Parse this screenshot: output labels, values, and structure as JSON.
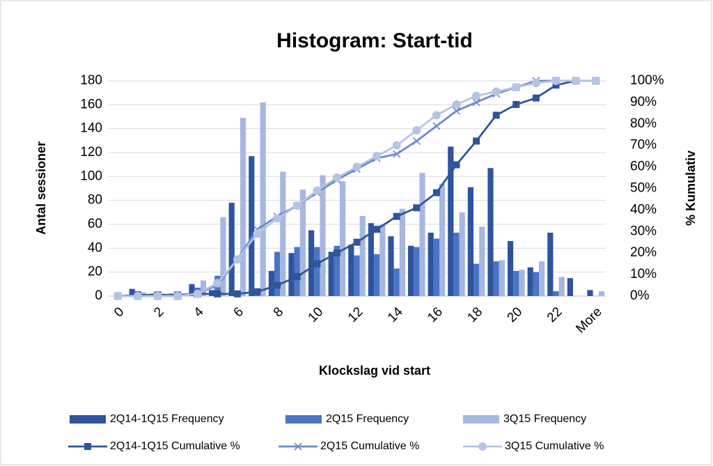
{
  "chart_data": {
    "type": "bar-line",
    "title": "Histogram: Start-tid",
    "x_label": "Klockslag vid start",
    "y_label": "Antal sessioner",
    "y2_label": "% Kumulativ",
    "categories": [
      "0",
      null,
      "2",
      null,
      "4",
      null,
      "6",
      null,
      "8",
      null,
      "10",
      null,
      "12",
      null,
      "14",
      null,
      "16",
      null,
      "18",
      null,
      "20",
      null,
      "22",
      null,
      "More"
    ],
    "ylim": [
      0,
      180
    ],
    "yticks": [
      0,
      20,
      40,
      60,
      80,
      100,
      120,
      140,
      160,
      180
    ],
    "y2lim": [
      0,
      100
    ],
    "y2ticks": [
      {
        "value": 0,
        "label": "0%"
      },
      {
        "value": 10,
        "label": "10%"
      },
      {
        "value": 20,
        "label": "20%"
      },
      {
        "value": 30,
        "label": "30%"
      },
      {
        "value": 40,
        "label": "40%"
      },
      {
        "value": 50,
        "label": "50%"
      },
      {
        "value": 60,
        "label": "60%"
      },
      {
        "value": 70,
        "label": "70%"
      },
      {
        "value": 80,
        "label": "80%"
      },
      {
        "value": 90,
        "label": "90%"
      },
      {
        "value": 100,
        "label": "100%"
      }
    ],
    "grid": true,
    "legend": "bottom",
    "series": [
      {
        "name": "2Q14-1Q15 Frequency",
        "kind": "bar",
        "color": "#2e54a0",
        "values": [
          0,
          6,
          2,
          2,
          10,
          5,
          78,
          117,
          21,
          36,
          55,
          37,
          43,
          61,
          50,
          42,
          53,
          125,
          91,
          107,
          46,
          24,
          53,
          15,
          5
        ]
      },
      {
        "name": "2Q15 Frequency",
        "kind": "bar",
        "color": "#4a74c4",
        "values": [
          0,
          4,
          2,
          2,
          7,
          17,
          3,
          5,
          37,
          41,
          41,
          42,
          34,
          35,
          23,
          41,
          48,
          53,
          27,
          29,
          21,
          20,
          4,
          0,
          0
        ]
      },
      {
        "name": "3Q15 Frequency",
        "kind": "bar",
        "color": "#a6b7e0",
        "values": [
          0,
          3,
          2,
          2,
          13,
          66,
          149,
          162,
          104,
          89,
          101,
          96,
          67,
          60,
          73,
          103,
          94,
          70,
          58,
          30,
          22,
          29,
          16,
          0,
          4
        ]
      },
      {
        "name": "2Q14-1Q15 Cumulative %",
        "kind": "line",
        "axis": "y2",
        "marker": "square",
        "color": "#2f5597",
        "values": [
          0,
          0.5,
          0.5,
          0.5,
          1,
          1,
          1,
          2,
          5,
          9,
          15,
          20,
          25,
          31,
          37,
          41,
          48,
          61,
          72,
          84,
          89,
          92,
          98,
          100,
          100
        ]
      },
      {
        "name": "2Q15 Cumulative %",
        "kind": "line",
        "axis": "y2",
        "marker": "x",
        "color": "#6b89cc",
        "values": [
          0,
          0,
          0,
          0,
          1,
          5,
          17,
          31,
          37,
          42,
          48,
          54,
          59,
          64,
          66,
          72,
          79,
          86,
          90,
          94,
          97,
          100,
          100,
          100,
          100
        ]
      },
      {
        "name": "3Q15 Cumulative %",
        "kind": "line",
        "axis": "y2",
        "marker": "circle",
        "color": "#b4c4e6",
        "values": [
          0,
          0,
          0,
          0,
          1,
          6,
          17,
          29,
          36,
          42,
          49,
          55,
          60,
          65,
          70,
          77,
          84,
          89,
          93,
          95,
          97,
          99,
          100,
          100,
          100
        ]
      }
    ]
  }
}
